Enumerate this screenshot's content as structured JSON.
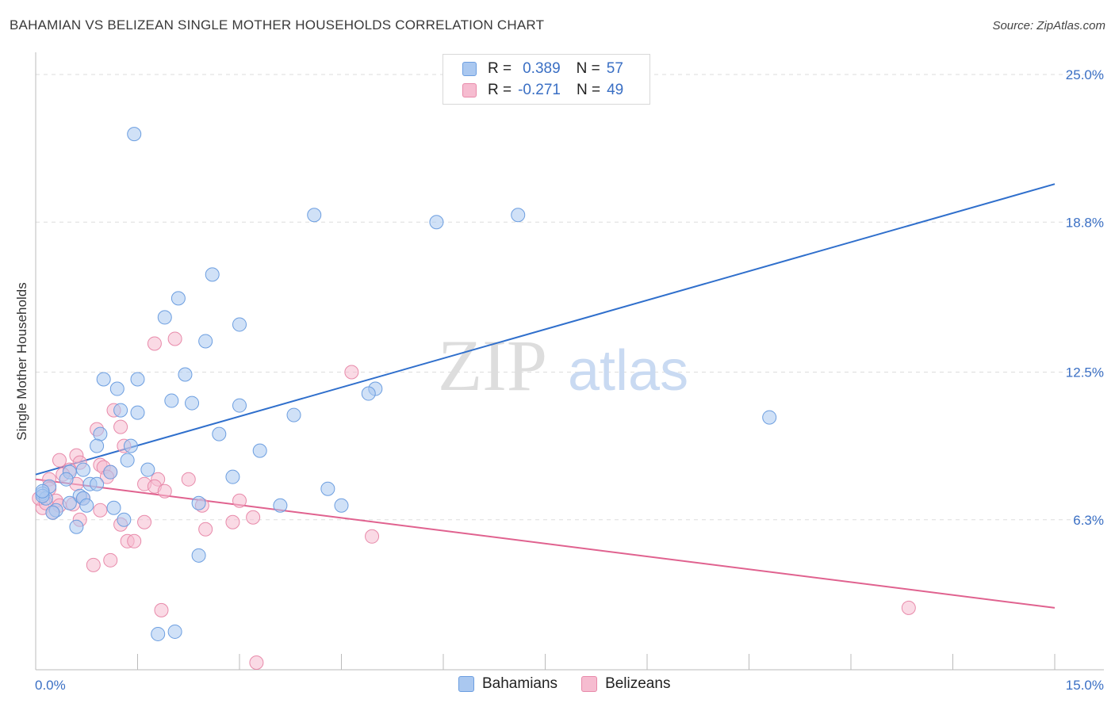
{
  "title": "BAHAMIAN VS BELIZEAN SINGLE MOTHER HOUSEHOLDS CORRELATION CHART",
  "source": "Source: ZipAtlas.com",
  "watermark": {
    "zip": "ZIP",
    "atlas": "atlas"
  },
  "legend": {
    "rows": [
      {
        "r_label": "R =",
        "r_value": "0.389",
        "n_label": "N =",
        "n_value": "57"
      },
      {
        "r_label": "R =",
        "r_value": "-0.271",
        "n_label": "N =",
        "n_value": "49"
      }
    ],
    "items": [
      "Bahamians",
      "Belizeans"
    ]
  },
  "colors": {
    "blue_fill": "#aac8f0",
    "blue_stroke": "#6c9ee0",
    "blue_line": "#2f6fcc",
    "pink_fill": "#f6bcd0",
    "pink_stroke": "#e88aaa",
    "pink_line": "#e0628f",
    "grid": "#dddddd",
    "tick_text": "#3a6fc4"
  },
  "chart_data": {
    "type": "scatter",
    "title": "BAHAMIAN VS BELIZEAN SINGLE MOTHER HOUSEHOLDS CORRELATION CHART",
    "xlabel": "",
    "ylabel": "Single Mother Households",
    "xlim": [
      0,
      15
    ],
    "ylim": [
      0,
      25.8
    ],
    "x_tick_labels": [
      "0.0%",
      "15.0%"
    ],
    "y_ticks": [
      6.3,
      12.5,
      18.8,
      25.0
    ],
    "y_tick_labels": [
      "6.3%",
      "12.5%",
      "18.8%",
      "25.0%"
    ],
    "series": [
      {
        "name": "Bahamians",
        "r": 0.389,
        "n": 57,
        "trend": {
          "x": [
            0,
            15
          ],
          "y": [
            8.2,
            20.4
          ]
        },
        "points": [
          [
            1.45,
            22.5
          ],
          [
            4.1,
            19.1
          ],
          [
            5.9,
            18.8
          ],
          [
            7.1,
            19.1
          ],
          [
            2.6,
            16.6
          ],
          [
            2.1,
            15.6
          ],
          [
            1.9,
            14.8
          ],
          [
            3.0,
            14.5
          ],
          [
            2.5,
            13.8
          ],
          [
            2.2,
            12.4
          ],
          [
            1.0,
            12.2
          ],
          [
            1.5,
            12.2
          ],
          [
            1.2,
            11.8
          ],
          [
            2.0,
            11.3
          ],
          [
            2.3,
            11.2
          ],
          [
            3.0,
            11.1
          ],
          [
            1.5,
            10.8
          ],
          [
            3.8,
            10.7
          ],
          [
            5.0,
            11.8
          ],
          [
            4.9,
            11.6
          ],
          [
            10.8,
            10.6
          ],
          [
            1.25,
            10.9
          ],
          [
            0.95,
            9.9
          ],
          [
            2.7,
            9.9
          ],
          [
            0.9,
            9.4
          ],
          [
            1.4,
            9.4
          ],
          [
            3.3,
            9.2
          ],
          [
            1.35,
            8.8
          ],
          [
            0.7,
            8.4
          ],
          [
            1.65,
            8.4
          ],
          [
            0.5,
            8.3
          ],
          [
            1.1,
            8.3
          ],
          [
            2.9,
            8.1
          ],
          [
            0.45,
            8.0
          ],
          [
            0.2,
            7.7
          ],
          [
            0.8,
            7.8
          ],
          [
            0.9,
            7.8
          ],
          [
            4.3,
            7.6
          ],
          [
            0.1,
            7.4
          ],
          [
            0.15,
            7.2
          ],
          [
            0.65,
            7.3
          ],
          [
            0.7,
            7.2
          ],
          [
            0.5,
            7.0
          ],
          [
            0.75,
            6.9
          ],
          [
            1.15,
            6.8
          ],
          [
            2.4,
            7.0
          ],
          [
            3.6,
            6.9
          ],
          [
            4.5,
            6.9
          ],
          [
            0.3,
            6.7
          ],
          [
            0.25,
            6.6
          ],
          [
            1.3,
            6.3
          ],
          [
            0.6,
            6.0
          ],
          [
            2.4,
            4.8
          ],
          [
            1.8,
            1.5
          ],
          [
            2.05,
            1.6
          ],
          [
            0.1,
            7.3
          ],
          [
            0.1,
            7.5
          ]
        ]
      },
      {
        "name": "Belizeans",
        "r": -0.271,
        "n": 49,
        "trend": {
          "x": [
            0,
            15
          ],
          "y": [
            8.0,
            2.6
          ]
        },
        "points": [
          [
            2.05,
            13.9
          ],
          [
            1.75,
            13.7
          ],
          [
            4.65,
            12.5
          ],
          [
            1.25,
            10.2
          ],
          [
            1.15,
            10.9
          ],
          [
            0.9,
            10.1
          ],
          [
            1.3,
            9.4
          ],
          [
            0.6,
            9.0
          ],
          [
            0.35,
            8.8
          ],
          [
            0.65,
            8.7
          ],
          [
            0.95,
            8.6
          ],
          [
            1.0,
            8.5
          ],
          [
            0.5,
            8.4
          ],
          [
            1.1,
            8.3
          ],
          [
            0.4,
            8.2
          ],
          [
            1.05,
            8.1
          ],
          [
            0.2,
            8.0
          ],
          [
            1.8,
            8.0
          ],
          [
            2.25,
            8.0
          ],
          [
            1.6,
            7.8
          ],
          [
            1.75,
            7.7
          ],
          [
            0.6,
            7.8
          ],
          [
            0.2,
            7.6
          ],
          [
            1.9,
            7.5
          ],
          [
            0.7,
            7.2
          ],
          [
            0.3,
            7.1
          ],
          [
            0.35,
            6.9
          ],
          [
            0.55,
            6.95
          ],
          [
            0.1,
            6.8
          ],
          [
            3.0,
            7.1
          ],
          [
            2.45,
            6.9
          ],
          [
            0.95,
            6.7
          ],
          [
            0.25,
            6.6
          ],
          [
            3.2,
            6.4
          ],
          [
            0.65,
            6.3
          ],
          [
            2.9,
            6.2
          ],
          [
            1.6,
            6.2
          ],
          [
            1.25,
            6.1
          ],
          [
            2.5,
            5.9
          ],
          [
            4.95,
            5.6
          ],
          [
            1.35,
            5.4
          ],
          [
            1.45,
            5.4
          ],
          [
            1.1,
            4.6
          ],
          [
            0.85,
            4.4
          ],
          [
            1.85,
            2.5
          ],
          [
            12.85,
            2.6
          ],
          [
            3.25,
            0.3
          ],
          [
            0.05,
            7.2
          ],
          [
            0.15,
            7.0
          ]
        ]
      }
    ]
  }
}
